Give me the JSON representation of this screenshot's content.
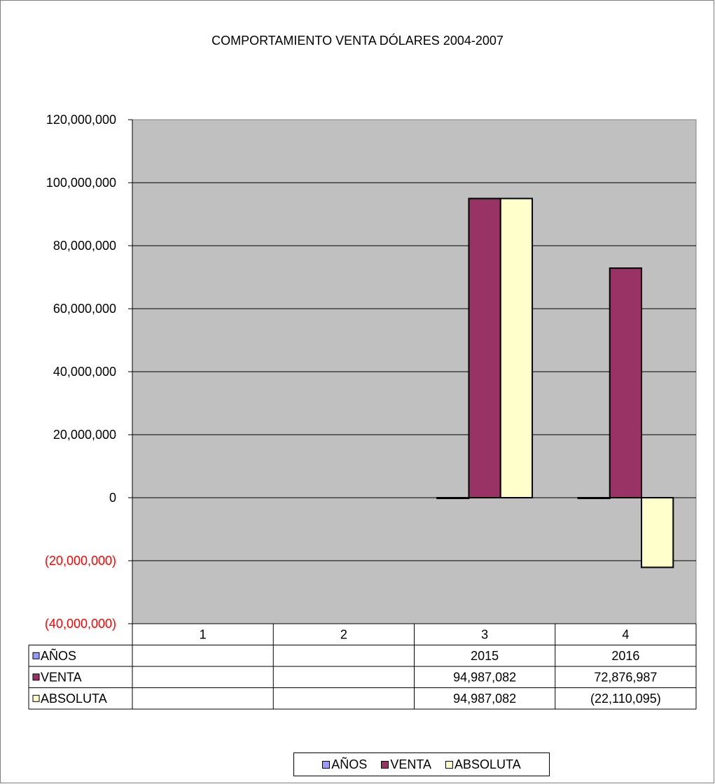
{
  "chart_data": {
    "type": "bar",
    "title": "COMPORTAMIENTO VENTA DÓLARES 2004-2007",
    "categories": [
      "1",
      "2",
      "3",
      "4"
    ],
    "ylim": [
      -40000000,
      120000000
    ],
    "yticks": [
      120000000,
      100000000,
      80000000,
      60000000,
      40000000,
      20000000,
      0,
      -20000000,
      -40000000
    ],
    "ytick_labels": [
      "120,000,000",
      "100,000,000",
      "80,000,000",
      "60,000,000",
      "40,000,000",
      "20,000,000",
      "0",
      "(20,000,000)",
      "(40,000,000)"
    ],
    "grid": true,
    "legend": "bottom",
    "plot_background": "#c0c0c0",
    "negative_label_color": "#ff0000",
    "series": [
      {
        "name": "AÑOS",
        "color": "#9999ff",
        "values": [
          null,
          null,
          2015,
          2016
        ],
        "labels": [
          "",
          "",
          "2015",
          "2016"
        ]
      },
      {
        "name": "VENTA",
        "color": "#993366",
        "values": [
          null,
          null,
          94987082,
          72876987
        ],
        "labels": [
          "",
          "",
          "94,987,082",
          "72,876,987"
        ]
      },
      {
        "name": "ABSOLUTA",
        "color": "#ffffcc",
        "values": [
          null,
          null,
          94987082,
          -22110095
        ],
        "labels": [
          "",
          "",
          "94,987,082",
          "(22,110,095)"
        ]
      }
    ]
  }
}
